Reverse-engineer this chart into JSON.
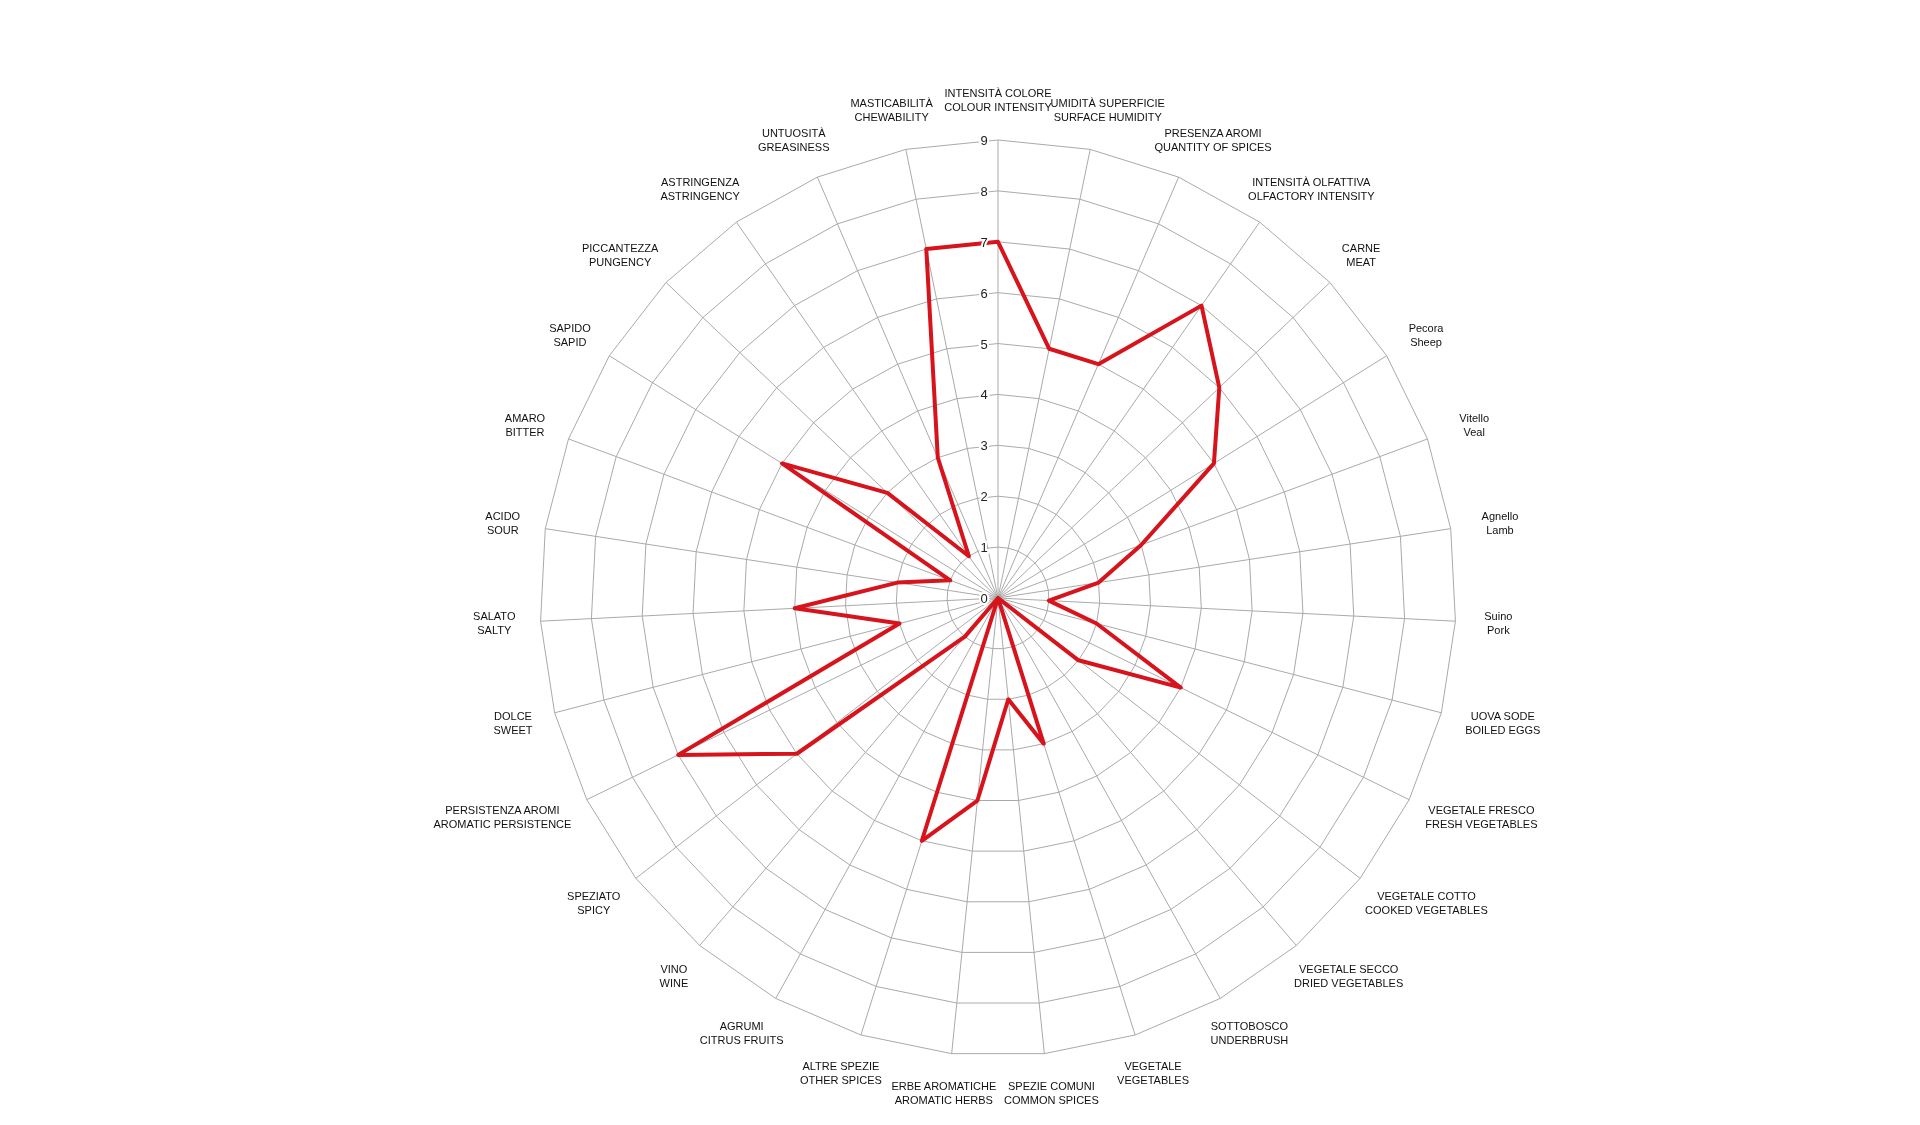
{
  "chart_data": {
    "type": "radar",
    "categories": [
      "INTENSITÀ COLORE\nCOLOUR INTENSITY",
      "UMIDITÀ SUPERFICIE\nSURFACE HUMIDITY",
      "PRESENZA AROMI\nQUANTITY OF SPICES",
      "INTENSITÀ OLFATTIVA\nOLFACTORY INTENSITY",
      "CARNE\nMEAT",
      "Pecora\nSheep",
      "Vitello\nVeal",
      "Agnello\nLamb",
      "Suino\nPork",
      "UOVA SODE\nBOILED EGGS",
      "VEGETALE FRESCO\nFRESH VEGETABLES",
      "VEGETALE COTTO\nCOOKED VEGETABLES",
      "VEGETALE SECCO\nDRIED VEGETABLES",
      "SOTTOBOSCO\nUNDERBRUSH",
      "VEGETALE\nVEGETABLES",
      "SPEZIE COMUNI\nCOMMON SPICES",
      "ERBE AROMATICHE\nAROMATIC HERBS",
      "ALTRE SPEZIE\nOTHER SPICES",
      "AGRUMI\nCITRUS FRUITS",
      "VINO\nWINE",
      "SPEZIATO\nSPICY",
      "PERSISTENZA AROMI\nAROMATIC PERSISTENCE",
      "DOLCE\nSWEET",
      "SALATO\nSALTY",
      "ACIDO\nSOUR",
      "AMARO\nBITTER",
      "SAPIDO\nSAPID",
      "PICCANTEZZA\nPUNGENCY",
      "ASTRINGENZA\nASTRINGENCY",
      "UNTUOSITÀ\nGREASINESS",
      "MASTICABILITÀ\nCHEWABILITY"
    ],
    "series": [
      {
        "color": "#d7131c",
        "values": [
          7,
          5,
          5,
          7,
          6,
          5,
          3,
          2,
          1,
          2,
          4,
          2,
          0,
          0,
          3,
          2,
          4,
          5,
          0,
          1,
          5,
          7,
          2,
          4,
          2,
          1,
          5,
          3,
          1,
          3,
          7
        ]
      }
    ],
    "ylim": [
      0,
      9
    ],
    "yticks": [
      0,
      1,
      2,
      3,
      4,
      5,
      6,
      7,
      8,
      9
    ],
    "grid": true
  }
}
